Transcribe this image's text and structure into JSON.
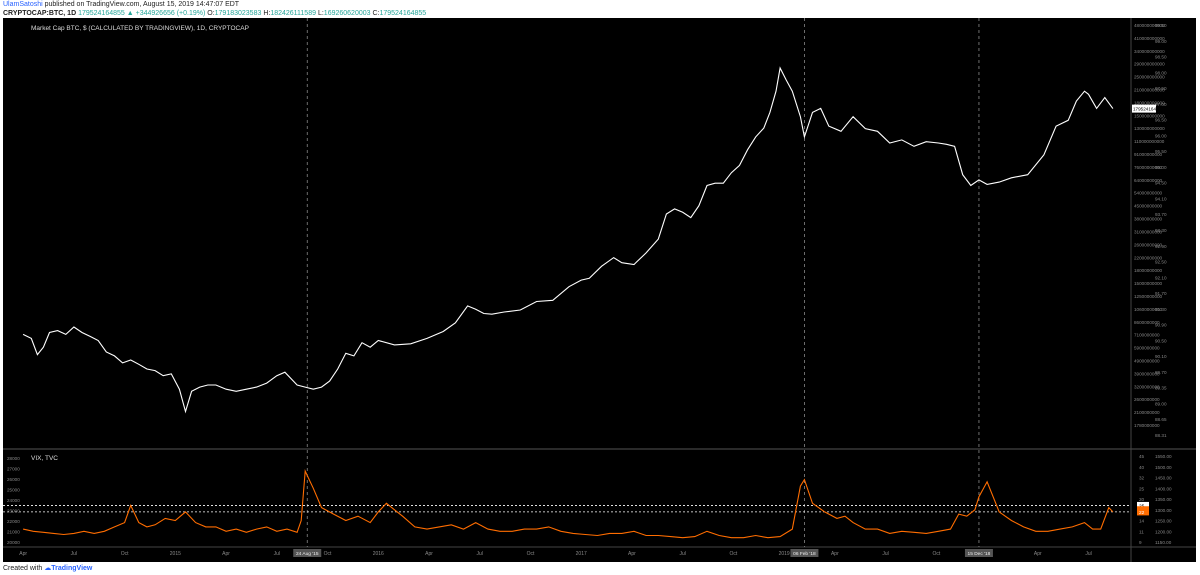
{
  "header": {
    "author": "UlamSatoshi",
    "published_text": " published on TradingView.com, August 15, 2019 14:47:07 EDT",
    "symbol": "CRYPTOCAP:BTC",
    "interval": ", 1D",
    "last": "179524164855",
    "change": "▲ +344926656 (+0.19%)",
    "o_label": "O:",
    "o_value": "179183023583",
    "h_label": "H:",
    "h_value": "182426111589",
    "l_label": "L:",
    "l_value": "169260620003",
    "c_label": "C:",
    "c_value": "179524164855"
  },
  "footer": {
    "created_with": "Created with",
    "brand": "TradingView"
  },
  "colors": {
    "background": "#000000",
    "main_line": "#ffffff",
    "vix_line": "#ff6d00",
    "label_bg": "#ff6d00",
    "grid_dash": "#888888"
  },
  "chart_data": [
    {
      "type": "line",
      "title": "Market Cap BTC, $ (CALCULATED BY TRADINGVIEW), 1D, CRYPTOCAP",
      "yscale": "log",
      "last_value_label": "179524164855",
      "x_tick_labels": [
        "Apr",
        "Jul",
        "Oct",
        "2015",
        "Apr",
        "Jul",
        "Oct",
        "2016",
        "Apr",
        "Jul",
        "Oct",
        "2017",
        "Apr",
        "Jul",
        "Oct",
        "2019",
        "Apr",
        "Jul",
        "Oct",
        "Apr",
        "Jul"
      ],
      "x_highlight_labels": [
        "24 Aug '15",
        "06 Feb '18",
        "15 Dec '18"
      ],
      "y_tick_labels_left": [
        "480000000000",
        "410000000000",
        "340000000000",
        "290000000000",
        "250000000000",
        "210000000000",
        "180000000000",
        "150000000000",
        "130000000000",
        "110000000000",
        "91000000000",
        "76000000000",
        "64000000000",
        "54000000000",
        "45000000000",
        "38000000000",
        "31000000000",
        "26000000000",
        "22000000000",
        "18000000000",
        "15000000000",
        "12500000000",
        "10600000000",
        "8600000000",
        "7100000000",
        "5900000000",
        "4900000000",
        "3900000000",
        "3200000000",
        "2600000000",
        "2100000000",
        "1780000000"
      ],
      "y_tick_labels_right": [
        "99.50",
        "99.00",
        "98.50",
        "98.00",
        "97.50",
        "97.00",
        "96.50",
        "96.00",
        "95.50",
        "95.00",
        "94.50",
        "94.10",
        "93.70",
        "93.30",
        "92.90",
        "92.50",
        "92.10",
        "91.70",
        "91.30",
        "90.90",
        "90.50",
        "90.10",
        "89.70",
        "89.35",
        "89.00",
        "88.65",
        "88.31"
      ],
      "x_range": [
        2014.2,
        2019.66
      ],
      "ylim": [
        1600000000,
        550000000000
      ],
      "series": [
        {
          "x": [
            2014.25,
            2014.29,
            2014.32,
            2014.35,
            2014.38,
            2014.42,
            2014.46,
            2014.5,
            2014.54,
            2014.58,
            2014.62,
            2014.66,
            2014.7,
            2014.74,
            2014.78,
            2014.82,
            2014.86,
            2014.9,
            2014.94,
            2014.98,
            2015.02,
            2015.05,
            2015.08,
            2015.12,
            2015.16,
            2015.2,
            2015.25,
            2015.3,
            2015.35,
            2015.4,
            2015.45,
            2015.5,
            2015.54,
            2015.6,
            2015.64,
            2015.68,
            2015.72,
            2015.76,
            2015.8,
            2015.84,
            2015.88,
            2015.92,
            2015.96,
            2016.0,
            2016.08,
            2016.16,
            2016.24,
            2016.32,
            2016.38,
            2016.44,
            2016.48,
            2016.52,
            2016.56,
            2016.62,
            2016.7,
            2016.78,
            2016.86,
            2016.94,
            2017.0,
            2017.04,
            2017.1,
            2017.16,
            2017.2,
            2017.26,
            2017.32,
            2017.38,
            2017.42,
            2017.46,
            2017.5,
            2017.54,
            2017.58,
            2017.62,
            2017.66,
            2017.7,
            2017.74,
            2017.78,
            2017.82,
            2017.86,
            2017.9,
            2017.93,
            2017.96,
            2017.98,
            2018.01,
            2018.04,
            2018.08,
            2018.1,
            2018.14,
            2018.18,
            2018.22,
            2018.28,
            2018.34,
            2018.4,
            2018.46,
            2018.52,
            2018.58,
            2018.64,
            2018.7,
            2018.76,
            2018.8,
            2018.84,
            2018.88,
            2018.92,
            2018.96,
            2019.0,
            2019.06,
            2019.12,
            2019.2,
            2019.28,
            2019.34,
            2019.4,
            2019.44,
            2019.48,
            2019.5,
            2019.54,
            2019.58,
            2019.62
          ],
          "y": [
            7200000000,
            6800000000,
            5400000000,
            6000000000,
            7400000000,
            7600000000,
            7200000000,
            8000000000,
            7400000000,
            7000000000,
            6600000000,
            5600000000,
            5300000000,
            4800000000,
            5000000000,
            4700000000,
            4400000000,
            4300000000,
            4000000000,
            4100000000,
            3300000000,
            2400000000,
            3200000000,
            3400000000,
            3500000000,
            3500000000,
            3300000000,
            3200000000,
            3300000000,
            3400000000,
            3600000000,
            4000000000,
            4200000000,
            3500000000,
            3400000000,
            3300000000,
            3400000000,
            3700000000,
            4400000000,
            5500000000,
            5300000000,
            6400000000,
            6000000000,
            6600000000,
            6200000000,
            6300000000,
            6800000000,
            7500000000,
            8500000000,
            10800000000,
            10300000000,
            9700000000,
            9600000000,
            9900000000,
            10200000000,
            11500000000,
            11700000000,
            14200000000,
            15600000000,
            16000000000,
            19000000000,
            21500000000,
            20000000000,
            19500000000,
            23000000000,
            28000000000,
            40000000000,
            43000000000,
            41000000000,
            38000000000,
            45000000000,
            60000000000,
            62000000000,
            62000000000,
            72000000000,
            80000000000,
            100000000000,
            120000000000,
            136000000000,
            170000000000,
            230000000000,
            320000000000,
            270000000000,
            230000000000,
            160000000000,
            120000000000,
            170000000000,
            180000000000,
            140000000000,
            130000000000,
            160000000000,
            135000000000,
            130000000000,
            110000000000,
            115000000000,
            105000000000,
            112000000000,
            110000000000,
            108000000000,
            105000000000,
            70000000000,
            60000000000,
            65000000000,
            61000000000,
            63000000000,
            67000000000,
            70000000000,
            93000000000,
            140000000000,
            152000000000,
            200000000000,
            230000000000,
            220000000000,
            180000000000,
            210000000000,
            179500000000
          ]
        }
      ]
    },
    {
      "type": "line",
      "title": "VIX, TVC",
      "y_tick_labels_left": [
        "28000",
        "27000",
        "26000",
        "25000",
        "24000",
        "23000",
        "22000",
        "21000",
        "20000"
      ],
      "y_tick_labels_mid": [
        "45",
        "40",
        "32",
        "25",
        "20",
        "17",
        "14",
        "11",
        "9"
      ],
      "y_tick_labels_right": [
        "1550.00",
        "1500.00",
        "1450.00",
        "1400.00",
        "1350.00",
        "1300.00",
        "1250.00",
        "1200.00",
        "1150.00"
      ],
      "value_labels": [
        "25",
        "23",
        "22"
      ],
      "reference_lines": [
        25,
        22
      ],
      "ylim": [
        8,
        48
      ],
      "series": [
        {
          "x": [
            2014.25,
            2014.3,
            2014.35,
            2014.4,
            2014.45,
            2014.5,
            2014.55,
            2014.6,
            2014.65,
            2014.7,
            2014.75,
            2014.78,
            2014.82,
            2014.86,
            2014.9,
            2014.95,
            2015.0,
            2015.05,
            2015.1,
            2015.15,
            2015.2,
            2015.25,
            2015.3,
            2015.35,
            2015.4,
            2015.45,
            2015.5,
            2015.55,
            2015.6,
            2015.62,
            2015.64,
            2015.68,
            2015.72,
            2015.78,
            2015.84,
            2015.9,
            2015.96,
            2016.0,
            2016.04,
            2016.08,
            2016.12,
            2016.18,
            2016.24,
            2016.3,
            2016.36,
            2016.42,
            2016.48,
            2016.54,
            2016.6,
            2016.66,
            2016.72,
            2016.78,
            2016.84,
            2016.9,
            2016.96,
            2017.02,
            2017.08,
            2017.14,
            2017.2,
            2017.26,
            2017.32,
            2017.38,
            2017.44,
            2017.5,
            2017.56,
            2017.62,
            2017.68,
            2017.74,
            2017.8,
            2017.86,
            2017.92,
            2017.98,
            2018.04,
            2018.08,
            2018.1,
            2018.14,
            2018.2,
            2018.26,
            2018.3,
            2018.34,
            2018.4,
            2018.46,
            2018.52,
            2018.58,
            2018.64,
            2018.7,
            2018.76,
            2018.82,
            2018.86,
            2018.9,
            2018.94,
            2018.96,
            2019.0,
            2019.06,
            2019.12,
            2019.18,
            2019.24,
            2019.3,
            2019.36,
            2019.42,
            2019.48,
            2019.52,
            2019.56,
            2019.6,
            2019.62
          ],
          "y": [
            14,
            13,
            12.5,
            12,
            11.5,
            12,
            13,
            12,
            13,
            15,
            17,
            25,
            17,
            15,
            16,
            19,
            18,
            22,
            17,
            15,
            15,
            13,
            14,
            12.5,
            14,
            15,
            13,
            14,
            12.5,
            18,
            41,
            33,
            24,
            21,
            18,
            20,
            17,
            22,
            26,
            23,
            20,
            15,
            14,
            15,
            16,
            14,
            17,
            14,
            13,
            13,
            14,
            14,
            15,
            13,
            12,
            11.5,
            11,
            12,
            12,
            13,
            11,
            11,
            10.5,
            10,
            10.5,
            13,
            11,
            10,
            10,
            11,
            10,
            10.5,
            14,
            34,
            37,
            26,
            22,
            19,
            20,
            17,
            14,
            14,
            12,
            13,
            12.5,
            12,
            13,
            14,
            21,
            20,
            23,
            29,
            36,
            22,
            18,
            15,
            13,
            13,
            14,
            15,
            17,
            14,
            14,
            24,
            22
          ]
        }
      ]
    }
  ]
}
